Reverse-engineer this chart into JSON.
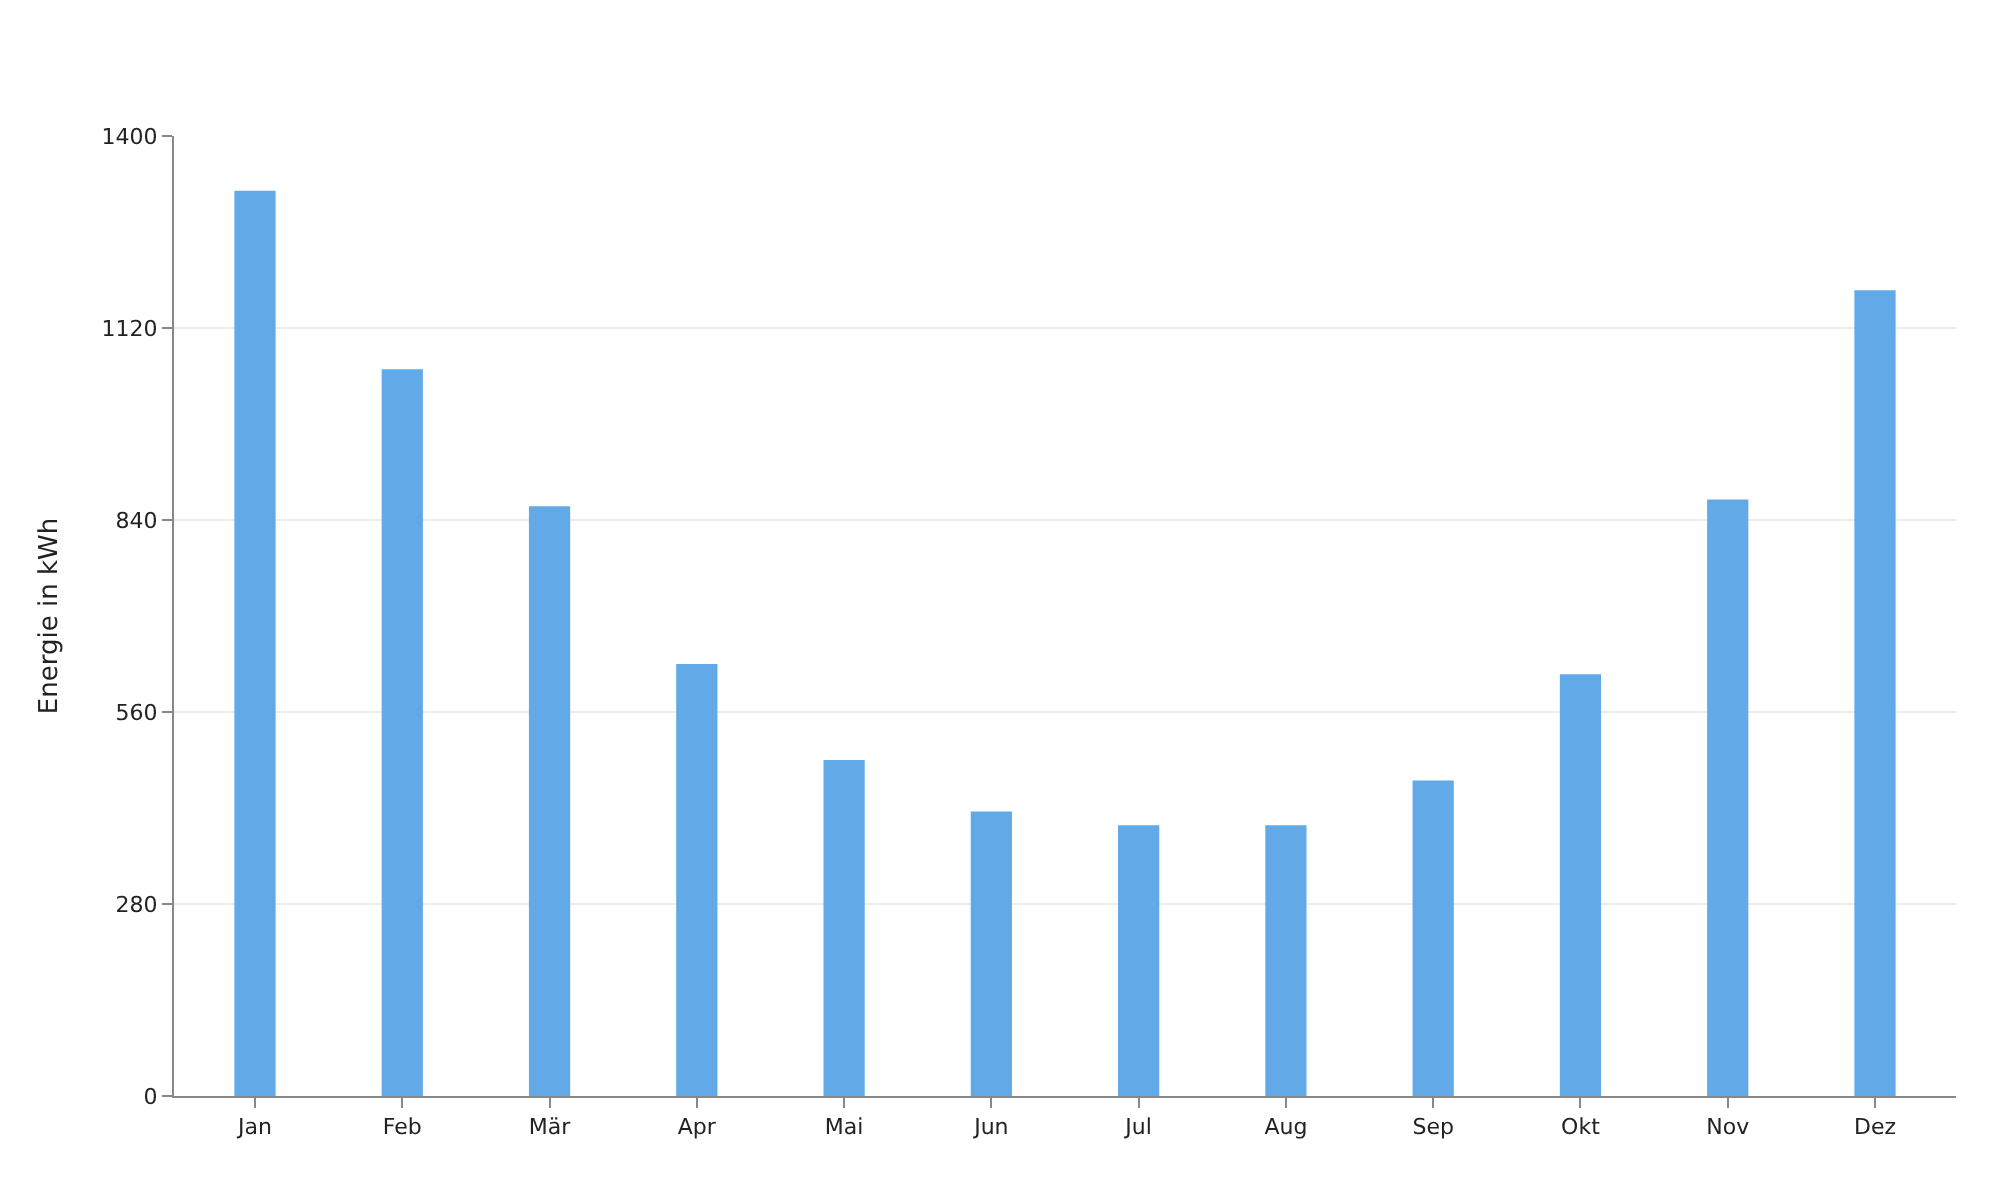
{
  "chart_data": {
    "type": "bar",
    "ylabel": "Energie in kWh",
    "categories": [
      "Jan",
      "Feb",
      "Mär",
      "Apr",
      "Mai",
      "Jun",
      "Jul",
      "Aug",
      "Sep",
      "Okt",
      "Nov",
      "Dez"
    ],
    "values": [
      1320,
      1060,
      860,
      630,
      490,
      415,
      395,
      395,
      460,
      615,
      870,
      1175
    ],
    "color": "#62a9e8",
    "ylim": [
      0,
      1400
    ],
    "yticks": [
      0,
      280,
      560,
      840,
      1120,
      1400
    ],
    "grid": "y"
  }
}
